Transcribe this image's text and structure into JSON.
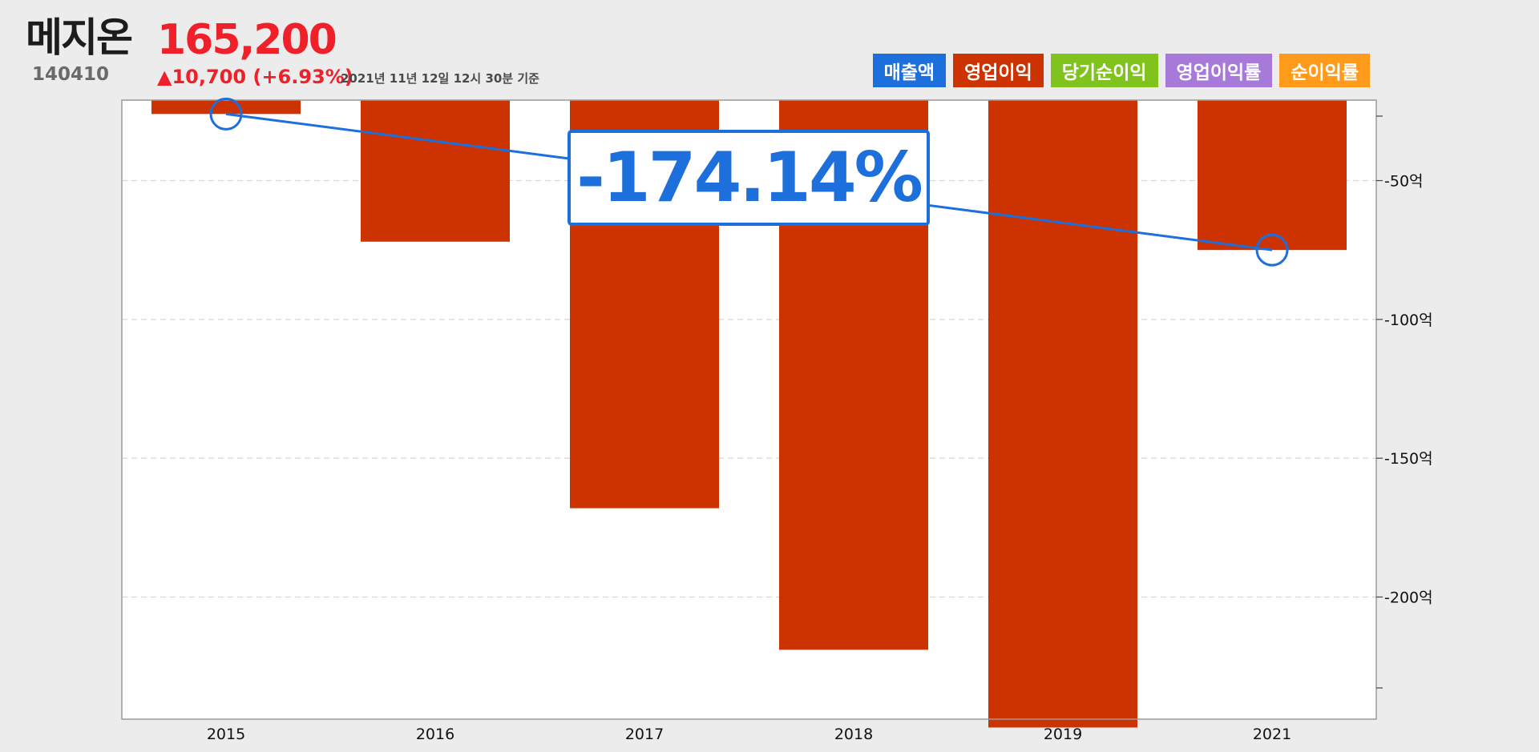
{
  "header": {
    "name": "메지온",
    "price": "165,200",
    "code": "140410",
    "change": "▲10,700 (+6.93%)",
    "timestamp": "2021년 11년 12일 12시 30분 기준"
  },
  "legend": [
    {
      "label": "매출액",
      "color": "#1d6fdc"
    },
    {
      "label": "영업이익",
      "color": "#cc3300"
    },
    {
      "label": "당기순이익",
      "color": "#7fc31c"
    },
    {
      "label": "영업이익률",
      "color": "#a77ad9"
    },
    {
      "label": "순이익률",
      "color": "#ff9a1a"
    }
  ],
  "callout": {
    "value": "-174.14%"
  },
  "chart_data": {
    "type": "bar",
    "categories": [
      "2015",
      "2016",
      "2017",
      "2018",
      "2019",
      "2021"
    ],
    "series": [
      {
        "name": "영업이익",
        "color": "#cc3300",
        "values": [
          -26,
          -72,
          -168,
          -219,
          -247,
          -75
        ]
      }
    ],
    "line": {
      "color": "#1d6fdc",
      "endpoints": [
        {
          "x": "2015",
          "y": -26
        },
        {
          "x": "2021",
          "y": -75
        }
      ]
    },
    "yticks": [
      {
        "value": -50,
        "label": "-50억"
      },
      {
        "value": -100,
        "label": "-100억"
      },
      {
        "value": -150,
        "label": "-150억"
      },
      {
        "value": -200,
        "label": "-200억"
      }
    ],
    "ylim": [
      -244,
      -21
    ],
    "grid": true,
    "legend_position": "top-right"
  }
}
